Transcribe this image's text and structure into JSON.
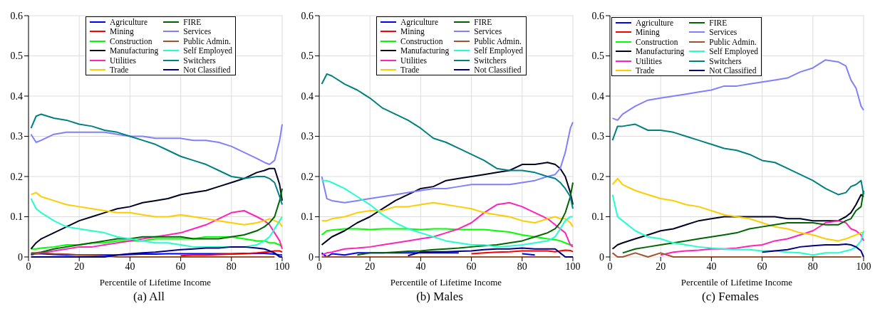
{
  "chart_data": [
    {
      "type": "line",
      "title": "(a) All",
      "xlabel": "Percentile of Lifetime Income",
      "xlim": [
        0,
        100
      ],
      "xticks": [
        0,
        20,
        40,
        60,
        80,
        100
      ],
      "ylim": [
        0,
        0.6
      ],
      "yticks": [
        0,
        0.1,
        0.2,
        0.3,
        0.4,
        0.5,
        0.6
      ],
      "grid": true,
      "legend": "top",
      "marker": "none",
      "line_style": "solid",
      "x": [
        1,
        3,
        5,
        10,
        15,
        20,
        25,
        30,
        35,
        40,
        45,
        50,
        55,
        60,
        65,
        70,
        75,
        80,
        85,
        90,
        93,
        95,
        97,
        99,
        100
      ],
      "series": [
        {
          "name": "Agriculture",
          "color": "#0000ff",
          "values": [
            0.008,
            0.008,
            0.008,
            0.006,
            0.005,
            0.005,
            0.005,
            0.005,
            0.005,
            0.006,
            0.007,
            0.007,
            0.008,
            0.008,
            0.008,
            0.008,
            0.008,
            0.008,
            0.009,
            0.009,
            0.009,
            0.008,
            0.007,
            0.005,
            0.005
          ]
        },
        {
          "name": "Mining",
          "color": "#ff0000",
          "values": [
            null,
            null,
            null,
            null,
            null,
            null,
            null,
            null,
            null,
            null,
            null,
            null,
            null,
            0.003,
            0.005,
            0.005,
            0.006,
            0.007,
            0.008,
            0.01,
            0.012,
            0.013,
            0.015,
            0.015,
            0.012
          ]
        },
        {
          "name": "Construction",
          "color": "#00ff00",
          "values": [
            0.02,
            0.02,
            0.022,
            0.025,
            0.03,
            0.03,
            0.035,
            0.035,
            0.04,
            0.04,
            0.04,
            0.045,
            0.045,
            0.045,
            0.045,
            0.05,
            0.05,
            0.05,
            0.045,
            0.04,
            0.04,
            0.035,
            0.035,
            0.03,
            0.025
          ]
        },
        {
          "name": "Manufacturing",
          "color": "#000022",
          "values": [
            0.02,
            0.035,
            0.045,
            0.06,
            0.075,
            0.09,
            0.1,
            0.11,
            0.12,
            0.125,
            0.135,
            0.14,
            0.145,
            0.155,
            0.16,
            0.165,
            0.175,
            0.185,
            0.195,
            0.21,
            0.215,
            0.22,
            0.22,
            0.18,
            0.14
          ]
        },
        {
          "name": "Utilities",
          "color": "#ff22bb",
          "values": [
            0.005,
            0.008,
            0.01,
            0.015,
            0.02,
            0.025,
            0.025,
            0.03,
            0.035,
            0.04,
            0.045,
            0.05,
            0.055,
            0.06,
            0.07,
            0.08,
            0.095,
            0.11,
            0.115,
            0.1,
            0.09,
            0.08,
            0.06,
            0.04,
            0.02
          ]
        },
        {
          "name": "Trade",
          "color": "#ffcc00",
          "values": [
            0.155,
            0.16,
            0.15,
            0.14,
            0.13,
            0.125,
            0.12,
            0.115,
            0.11,
            0.11,
            0.105,
            0.1,
            0.1,
            0.105,
            0.1,
            0.095,
            0.09,
            0.085,
            0.08,
            0.085,
            0.09,
            0.095,
            0.09,
            0.085,
            0.075
          ]
        },
        {
          "name": "FIRE",
          "color": "#006400",
          "values": [
            0.005,
            0.01,
            0.012,
            0.02,
            0.025,
            0.03,
            0.035,
            0.04,
            0.045,
            0.045,
            0.05,
            0.05,
            0.05,
            0.05,
            0.045,
            0.045,
            0.045,
            0.05,
            0.055,
            0.065,
            0.075,
            0.085,
            0.1,
            0.14,
            0.17
          ]
        },
        {
          "name": "Services",
          "color": "#8080ff",
          "values": [
            0.305,
            0.285,
            0.29,
            0.305,
            0.31,
            0.31,
            0.31,
            0.31,
            0.305,
            0.3,
            0.3,
            0.295,
            0.295,
            0.295,
            0.29,
            0.29,
            0.285,
            0.275,
            0.26,
            0.245,
            0.235,
            0.23,
            0.24,
            0.29,
            0.33
          ]
        },
        {
          "name": "Public Admin.",
          "color": "#a0522d",
          "values": [
            0.01,
            0.01,
            0.01,
            0.008,
            0.007,
            0.005,
            0.004,
            0.002,
            0,
            0,
            0,
            0,
            0,
            0,
            0,
            0,
            0,
            0,
            0,
            0,
            0,
            0,
            0,
            null,
            null
          ]
        },
        {
          "name": "Self Employed",
          "color": "#22ffcc",
          "values": [
            0.145,
            0.12,
            0.11,
            0.09,
            0.075,
            0.07,
            0.065,
            0.06,
            0.05,
            0.045,
            0.04,
            0.035,
            0.035,
            0.03,
            0.025,
            0.025,
            0.025,
            0.025,
            0.025,
            0.03,
            0.04,
            0.05,
            0.07,
            0.09,
            0.1
          ]
        },
        {
          "name": "Switchers",
          "color": "#008080",
          "values": [
            0.32,
            0.35,
            0.355,
            0.345,
            0.34,
            0.33,
            0.325,
            0.315,
            0.31,
            0.3,
            0.29,
            0.28,
            0.265,
            0.25,
            0.24,
            0.23,
            0.215,
            0.2,
            0.195,
            0.2,
            0.2,
            0.195,
            0.185,
            0.15,
            0.13
          ]
        },
        {
          "name": "Not Classified",
          "color": "#000080",
          "values": [
            0,
            0,
            0,
            0,
            0,
            0,
            0,
            0,
            0.005,
            0.008,
            0.01,
            0.012,
            0.015,
            0.018,
            0.02,
            0.022,
            0.022,
            0.025,
            0.025,
            0.022,
            0.02,
            0.015,
            0.01,
            0,
            0
          ]
        }
      ]
    },
    {
      "type": "line",
      "title": "(b) Males",
      "xlabel": "Percentile of Lifetime Income",
      "xlim": [
        0,
        100
      ],
      "xticks": [
        0,
        20,
        40,
        60,
        80,
        100
      ],
      "ylim": [
        0,
        0.6
      ],
      "yticks": [
        0,
        0.1,
        0.2,
        0.3,
        0.4,
        0.5,
        0.6
      ],
      "grid": true,
      "legend": "top",
      "marker": "none",
      "line_style": "solid",
      "x": [
        1,
        3,
        5,
        10,
        15,
        20,
        25,
        30,
        35,
        40,
        45,
        50,
        55,
        60,
        65,
        70,
        75,
        80,
        85,
        90,
        93,
        95,
        97,
        99,
        100
      ],
      "series": [
        {
          "name": "Agriculture",
          "color": "#0000ff",
          "values": [
            0.01,
            0,
            0.008,
            0.005,
            0.01,
            0.01,
            0.01,
            0.01,
            0.01,
            0.01,
            0.01,
            0.01,
            0.01,
            null,
            null,
            null,
            null,
            0.008,
            0.005,
            null,
            null,
            null,
            null,
            null,
            null
          ]
        },
        {
          "name": "Mining",
          "color": "#ff0000",
          "values": [
            null,
            null,
            null,
            null,
            null,
            null,
            null,
            null,
            null,
            null,
            null,
            null,
            null,
            0.008,
            0.01,
            0.012,
            0.013,
            0.015,
            0.015,
            0.015,
            0.013,
            0.015,
            0.017,
            0.016,
            0.013
          ]
        },
        {
          "name": "Construction",
          "color": "#00ff00",
          "values": [
            0.055,
            0.065,
            0.067,
            0.07,
            0.07,
            0.068,
            0.07,
            0.07,
            0.07,
            0.068,
            0.07,
            0.07,
            0.068,
            0.068,
            0.068,
            0.065,
            0.062,
            0.055,
            0.05,
            0.045,
            0.043,
            0.04,
            0.035,
            0.03,
            0.03
          ]
        },
        {
          "name": "Manufacturing",
          "color": "#000022",
          "values": [
            0.03,
            0.04,
            0.05,
            0.065,
            0.085,
            0.1,
            0.12,
            0.14,
            0.155,
            0.17,
            0.175,
            0.19,
            0.195,
            0.2,
            0.205,
            0.21,
            0.215,
            0.23,
            0.23,
            0.235,
            0.23,
            0.22,
            0.2,
            0.16,
            0.13
          ]
        },
        {
          "name": "Utilities",
          "color": "#ff22bb",
          "values": [
            0.005,
            0.01,
            0.012,
            0.02,
            0.022,
            0.025,
            0.03,
            0.035,
            0.04,
            0.045,
            0.05,
            0.06,
            0.07,
            0.085,
            0.11,
            0.13,
            0.135,
            0.125,
            0.11,
            0.095,
            0.08,
            0.07,
            0.06,
            0.03,
            0.025
          ]
        },
        {
          "name": "Trade",
          "color": "#ffcc00",
          "values": [
            0.09,
            0.09,
            0.095,
            0.1,
            0.11,
            0.115,
            0.115,
            0.125,
            0.125,
            0.13,
            0.135,
            0.13,
            0.125,
            0.12,
            0.11,
            0.105,
            0.1,
            0.09,
            0.085,
            0.095,
            0.1,
            0.095,
            0.095,
            0.085,
            0.075
          ]
        },
        {
          "name": "FIRE",
          "color": "#006400",
          "values": [
            null,
            null,
            null,
            null,
            0.005,
            0.01,
            0.01,
            0.012,
            0.014,
            0.015,
            0.018,
            0.02,
            0.022,
            0.025,
            0.028,
            0.03,
            0.035,
            0.04,
            0.05,
            0.06,
            0.07,
            0.085,
            0.11,
            0.15,
            0.185
          ]
        },
        {
          "name": "Services",
          "color": "#8080ff",
          "values": [
            0.2,
            0.145,
            0.14,
            0.135,
            0.14,
            0.145,
            0.15,
            0.155,
            0.16,
            0.165,
            0.17,
            0.17,
            0.175,
            0.18,
            0.18,
            0.18,
            0.18,
            0.185,
            0.19,
            0.2,
            0.205,
            0.22,
            0.26,
            0.32,
            0.335
          ]
        },
        {
          "name": "Public Admin.",
          "color": "#a0522d",
          "values": [
            0,
            0,
            0,
            0,
            0,
            0,
            0,
            0,
            0,
            0,
            0,
            0,
            0,
            0,
            0,
            0,
            0,
            0,
            0,
            0,
            0,
            0,
            null,
            null,
            null
          ]
        },
        {
          "name": "Self Employed",
          "color": "#22ffcc",
          "values": [
            0.19,
            0.19,
            0.185,
            0.17,
            0.15,
            0.13,
            0.105,
            0.085,
            0.07,
            0.06,
            0.05,
            0.04,
            0.035,
            0.03,
            0.03,
            0.025,
            0.027,
            0.03,
            0.035,
            0.04,
            0.05,
            0.07,
            0.09,
            0.1,
            0.1
          ]
        },
        {
          "name": "Switchers",
          "color": "#008080",
          "values": [
            0.43,
            0.455,
            0.45,
            0.43,
            0.415,
            0.395,
            0.37,
            0.355,
            0.34,
            0.32,
            0.295,
            0.285,
            0.27,
            0.255,
            0.24,
            0.22,
            0.215,
            0.215,
            0.21,
            0.2,
            0.195,
            0.185,
            0.17,
            0.15,
            0.12
          ]
        },
        {
          "name": "Not Classified",
          "color": "#000080",
          "values": [
            null,
            null,
            null,
            null,
            null,
            null,
            null,
            null,
            0.003,
            0.012,
            0.013,
            0.013,
            0.014,
            0.015,
            0.018,
            0.02,
            0.02,
            0.022,
            0.02,
            0.02,
            0.02,
            0.01,
            0,
            0,
            0
          ]
        }
      ]
    },
    {
      "type": "line",
      "title": "(c) Females",
      "xlabel": "Percentile of Lifetime Income",
      "xlim": [
        0,
        100
      ],
      "xticks": [
        0,
        20,
        40,
        60,
        80,
        100
      ],
      "ylim": [
        0,
        0.6
      ],
      "yticks": [
        0,
        0.1,
        0.2,
        0.3,
        0.4,
        0.5,
        0.6
      ],
      "grid": true,
      "legend": "top left",
      "marker": "none",
      "line_style": "solid",
      "x": [
        1,
        3,
        5,
        10,
        15,
        20,
        25,
        30,
        35,
        40,
        45,
        50,
        55,
        60,
        65,
        70,
        75,
        80,
        85,
        90,
        93,
        95,
        97,
        99,
        100
      ],
      "series": [
        {
          "name": "Agriculture",
          "color": "#0000ff",
          "values": [
            null,
            null,
            null,
            null,
            null,
            null,
            null,
            null,
            null,
            null,
            null,
            null,
            null,
            null,
            null,
            null,
            null,
            null,
            null,
            null,
            null,
            null,
            null,
            null,
            null
          ]
        },
        {
          "name": "Mining",
          "color": "#ff0000",
          "values": [
            null,
            null,
            null,
            null,
            null,
            null,
            null,
            null,
            null,
            null,
            null,
            null,
            null,
            null,
            null,
            null,
            null,
            null,
            null,
            null,
            null,
            null,
            null,
            null,
            null
          ]
        },
        {
          "name": "Construction",
          "color": "#00ff00",
          "values": [
            null,
            null,
            null,
            null,
            null,
            null,
            null,
            null,
            null,
            null,
            null,
            null,
            null,
            null,
            null,
            null,
            null,
            null,
            null,
            null,
            null,
            null,
            null,
            null,
            null
          ]
        },
        {
          "name": "Manufacturing",
          "color": "#000022",
          "values": [
            0.02,
            0.03,
            0.035,
            0.045,
            0.055,
            0.065,
            0.07,
            0.08,
            0.09,
            0.095,
            0.1,
            0.1,
            0.1,
            0.1,
            0.1,
            0.095,
            0.095,
            0.09,
            0.09,
            0.09,
            0.1,
            0.11,
            0.13,
            0.155,
            0.15
          ]
        },
        {
          "name": "Utilities",
          "color": "#ff22bb",
          "values": [
            null,
            null,
            null,
            null,
            null,
            0.005,
            0.012,
            0.015,
            0.017,
            0.02,
            0.02,
            0.022,
            0.027,
            0.03,
            0.04,
            0.045,
            0.055,
            0.065,
            0.085,
            0.09,
            0.085,
            0.07,
            0.065,
            0.055,
            0.04
          ]
        },
        {
          "name": "Trade",
          "color": "#ffcc00",
          "values": [
            0.18,
            0.195,
            0.18,
            0.165,
            0.155,
            0.145,
            0.14,
            0.13,
            0.125,
            0.115,
            0.105,
            0.1,
            0.095,
            0.085,
            0.075,
            0.07,
            0.06,
            0.055,
            0.045,
            0.04,
            0.045,
            0.05,
            0.055,
            0.06,
            0.06
          ]
        },
        {
          "name": "FIRE",
          "color": "#006400",
          "values": [
            null,
            null,
            0.01,
            0.02,
            0.025,
            0.03,
            0.035,
            0.04,
            0.045,
            0.05,
            0.055,
            0.06,
            0.07,
            0.075,
            0.08,
            0.085,
            0.085,
            0.085,
            0.08,
            0.08,
            0.09,
            0.095,
            0.115,
            0.125,
            0.165
          ]
        },
        {
          "name": "Services",
          "color": "#8080ff",
          "values": [
            0.345,
            0.34,
            0.355,
            0.375,
            0.39,
            0.395,
            0.4,
            0.405,
            0.41,
            0.415,
            0.425,
            0.425,
            0.43,
            0.435,
            0.44,
            0.445,
            0.46,
            0.47,
            0.49,
            0.485,
            0.475,
            0.44,
            0.42,
            0.375,
            0.365
          ]
        },
        {
          "name": "Public Admin.",
          "color": "#a0522d",
          "values": [
            0.01,
            0,
            0,
            0.01,
            0,
            0.01,
            0,
            0,
            0,
            0,
            0,
            0,
            0,
            0,
            0,
            0,
            0,
            0,
            0,
            0,
            0,
            0,
            0,
            0,
            null
          ]
        },
        {
          "name": "Self Employed",
          "color": "#22ffcc",
          "values": [
            0.155,
            0.1,
            0.09,
            0.065,
            0.05,
            0.045,
            0.035,
            0.03,
            0.025,
            0.022,
            0.02,
            0.018,
            0.018,
            0.015,
            0.015,
            0.012,
            0.01,
            0.005,
            0.01,
            0.01,
            0.015,
            0.018,
            0.025,
            0.04,
            0.065
          ]
        },
        {
          "name": "Switchers",
          "color": "#008080",
          "values": [
            0.29,
            0.325,
            0.325,
            0.33,
            0.315,
            0.315,
            0.31,
            0.3,
            0.29,
            0.28,
            0.27,
            0.265,
            0.255,
            0.24,
            0.235,
            0.22,
            0.205,
            0.19,
            0.17,
            0.155,
            0.16,
            0.175,
            0.18,
            0.19,
            0.155
          ]
        },
        {
          "name": "Not Classified",
          "color": "#000080",
          "values": [
            null,
            null,
            null,
            null,
            null,
            null,
            null,
            null,
            null,
            null,
            null,
            null,
            null,
            0.012,
            0.015,
            0.018,
            0.025,
            0.028,
            0.03,
            0.03,
            0.032,
            0.03,
            0.025,
            0.015,
            0
          ]
        }
      ]
    }
  ]
}
